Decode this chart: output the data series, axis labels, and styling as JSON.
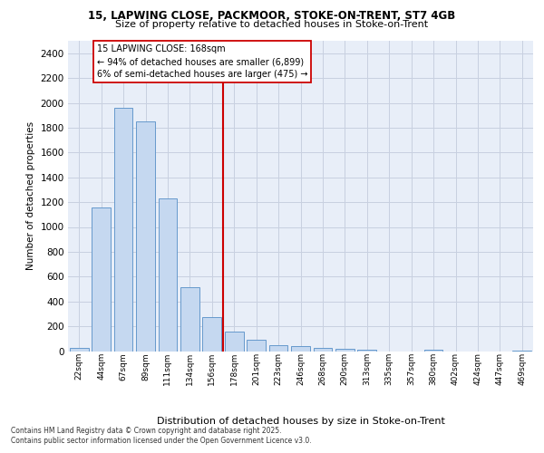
{
  "title_line1": "15, LAPWING CLOSE, PACKMOOR, STOKE-ON-TRENT, ST7 4GB",
  "title_line2": "Size of property relative to detached houses in Stoke-on-Trent",
  "xlabel": "Distribution of detached houses by size in Stoke-on-Trent",
  "ylabel": "Number of detached properties",
  "categories": [
    "22sqm",
    "44sqm",
    "67sqm",
    "89sqm",
    "111sqm",
    "134sqm",
    "156sqm",
    "178sqm",
    "201sqm",
    "223sqm",
    "246sqm",
    "268sqm",
    "290sqm",
    "313sqm",
    "335sqm",
    "357sqm",
    "380sqm",
    "402sqm",
    "424sqm",
    "447sqm",
    "469sqm"
  ],
  "values": [
    25,
    1160,
    1960,
    1850,
    1230,
    515,
    275,
    155,
    90,
    48,
    38,
    22,
    20,
    12,
    0,
    0,
    10,
    0,
    0,
    0,
    5
  ],
  "bar_color": "#c5d8f0",
  "bar_edge_color": "#6699cc",
  "vline_pos": 7.0,
  "annotation_title": "15 LAPWING CLOSE: 168sqm",
  "annotation_line1": "← 94% of detached houses are smaller (6,899)",
  "annotation_line2": "6% of semi-detached houses are larger (475) →",
  "vline_color": "#cc0000",
  "ylim": [
    0,
    2500
  ],
  "yticks": [
    0,
    200,
    400,
    600,
    800,
    1000,
    1200,
    1400,
    1600,
    1800,
    2000,
    2200,
    2400
  ],
  "background_color": "#e8eef8",
  "grid_color": "#c8d0e0",
  "footer_line1": "Contains HM Land Registry data © Crown copyright and database right 2025.",
  "footer_line2": "Contains public sector information licensed under the Open Government Licence v3.0."
}
